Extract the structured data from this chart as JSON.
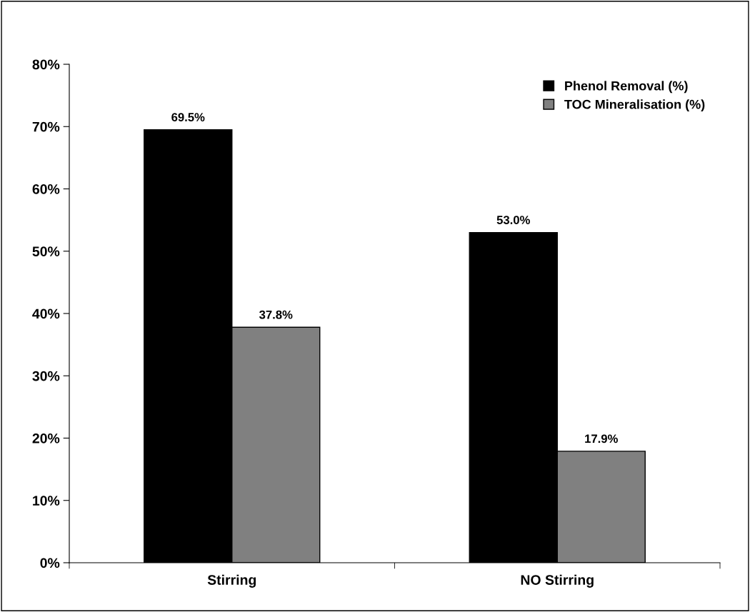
{
  "chart_data": {
    "type": "bar",
    "categories": [
      "Stirring",
      "NO Stirring"
    ],
    "series": [
      {
        "name": "Phenol Removal (%)",
        "color": "#000000",
        "values": [
          69.5,
          53.0
        ],
        "value_labels": [
          "69.5%",
          "53.0%"
        ]
      },
      {
        "name": "TOC Mineralisation (%)",
        "color": "#808080",
        "values": [
          37.8,
          17.9
        ],
        "value_labels": [
          "37.8%",
          "17.9%"
        ]
      }
    ],
    "ylim": [
      0,
      80
    ],
    "yticks": [
      {
        "value": 0,
        "label": "0%"
      },
      {
        "value": 10,
        "label": "10%"
      },
      {
        "value": 20,
        "label": "20%"
      },
      {
        "value": 30,
        "label": "30%"
      },
      {
        "value": 40,
        "label": "40%"
      },
      {
        "value": 50,
        "label": "50%"
      },
      {
        "value": 60,
        "label": "60%"
      },
      {
        "value": 70,
        "label": "70%"
      },
      {
        "value": 80,
        "label": "80%"
      }
    ],
    "grid": false,
    "legend": "top right"
  }
}
